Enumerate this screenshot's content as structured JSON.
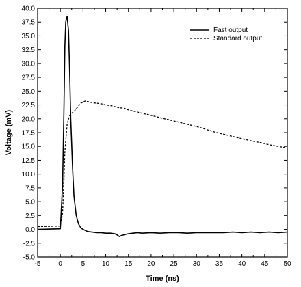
{
  "chart_data": {
    "type": "line",
    "title": "",
    "xlabel": "Time (ns)",
    "ylabel": "Voltage (mV)",
    "xlim": [
      -5,
      50
    ],
    "ylim": [
      -5.0,
      40.0
    ],
    "x_ticks": [
      "-5",
      "0",
      "5",
      "10",
      "15",
      "20",
      "25",
      "30",
      "35",
      "40",
      "45",
      "50"
    ],
    "y_ticks": [
      "-5.0",
      "-2.5",
      "0.0",
      "2.5",
      "5.0",
      "7.5",
      "10.0",
      "12.5",
      "15.0",
      "17.5",
      "20.0",
      "22.5",
      "25.0",
      "27.5",
      "30.0",
      "32.5",
      "35.0",
      "37.5",
      "40.0"
    ],
    "grid": false,
    "legend_position": "top-right",
    "series": [
      {
        "name": "Fast output",
        "style": "solid",
        "color": "#000000",
        "x": [
          -5,
          0,
          0.5,
          0.8,
          1.0,
          1.2,
          1.5,
          1.8,
          2.0,
          2.3,
          2.7,
          3.0,
          3.5,
          4.0,
          4.5,
          5.0,
          5.5,
          6.0,
          7.0,
          8.0,
          9.0,
          10.0,
          11.0,
          12.0,
          12.5,
          13.0,
          13.5,
          14.0,
          15.0,
          16.0,
          17.0,
          18.0,
          20.0,
          22.0,
          24.0,
          26.0,
          28.0,
          30.0,
          32.0,
          34.0,
          36.0,
          38.0,
          40.0,
          42.0,
          44.0,
          46.0,
          48.0,
          50.0
        ],
        "y": [
          0.0,
          0.1,
          8.0,
          22.0,
          33.0,
          37.5,
          38.5,
          36.0,
          30.0,
          20.0,
          11.0,
          6.0,
          2.5,
          1.0,
          0.3,
          0.0,
          -0.2,
          -0.4,
          -0.5,
          -0.6,
          -0.6,
          -0.7,
          -0.7,
          -0.8,
          -1.0,
          -1.3,
          -1.1,
          -1.0,
          -0.8,
          -0.7,
          -0.6,
          -0.7,
          -0.6,
          -0.7,
          -0.6,
          -0.6,
          -0.7,
          -0.6,
          -0.6,
          -0.6,
          -0.6,
          -0.5,
          -0.6,
          -0.5,
          -0.6,
          -0.5,
          -0.6,
          -0.5
        ]
      },
      {
        "name": "Standard output",
        "style": "dashed",
        "color": "#000000",
        "x": [
          -5,
          0,
          0.5,
          0.8,
          1.0,
          1.5,
          2.0,
          2.5,
          3.0,
          3.5,
          4.0,
          4.5,
          5.0,
          5.5,
          6.0,
          7.0,
          8.0,
          9.0,
          10.0,
          11.0,
          12.0,
          13.0,
          14.0,
          15.0,
          16.0,
          18.0,
          20.0,
          22.0,
          24.0,
          26.0,
          28.0,
          30.0,
          32.0,
          34.0,
          36.0,
          38.0,
          40.0,
          42.0,
          44.0,
          46.0,
          48.0,
          50.0
        ],
        "y": [
          0.5,
          0.6,
          3.0,
          9.0,
          14.0,
          19.0,
          20.5,
          21.0,
          21.3,
          21.8,
          22.3,
          22.8,
          23.0,
          23.2,
          23.1,
          22.9,
          22.8,
          22.7,
          22.5,
          22.4,
          22.2,
          22.0,
          21.9,
          21.6,
          21.4,
          21.0,
          20.6,
          20.2,
          19.8,
          19.4,
          19.0,
          18.6,
          18.1,
          17.6,
          17.2,
          16.8,
          16.4,
          16.0,
          15.7,
          15.3,
          15.0,
          14.7
        ]
      }
    ]
  }
}
